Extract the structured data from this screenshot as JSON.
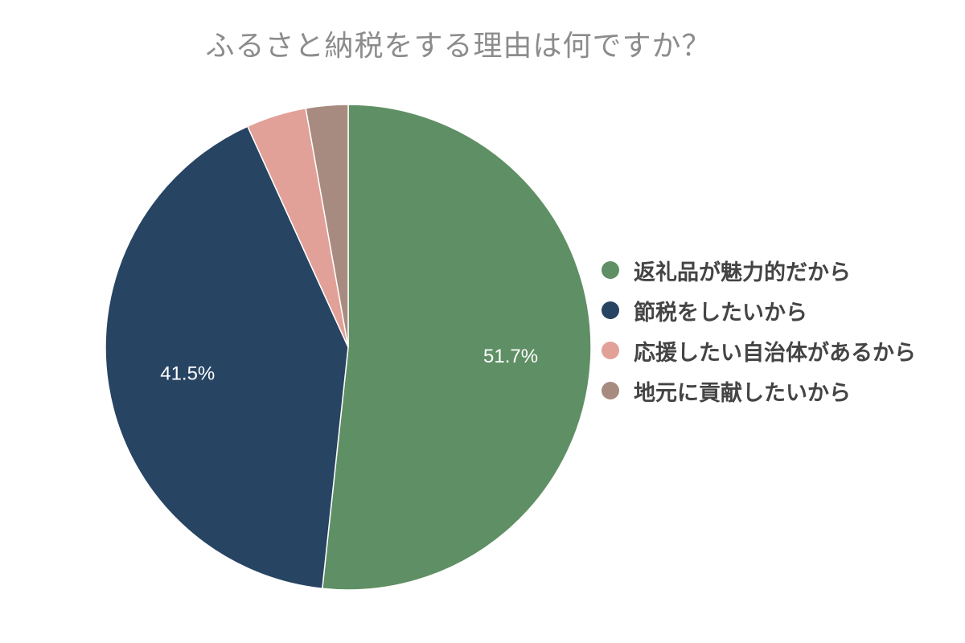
{
  "chart_data": {
    "type": "pie",
    "title": "ふるさと納税をする理由は何ですか？",
    "categories": [
      "返礼品が魅力的だから",
      "節税をしたいから",
      "応援したい自治体があるから",
      "地元に貢献したいから"
    ],
    "values": [
      51.7,
      41.5,
      4.0,
      2.8
    ],
    "value_labels": [
      "51.7%",
      "41.5%",
      "",
      ""
    ],
    "colors": [
      "#5f8f64",
      "#274463",
      "#e2a198",
      "#a88b80"
    ],
    "legend_position": "right"
  }
}
